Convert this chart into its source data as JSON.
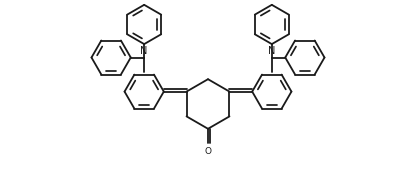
{
  "bg_color": "#ffffff",
  "line_color": "#1a1a1a",
  "line_width": 1.3,
  "fig_width": 4.16,
  "fig_height": 1.77,
  "dpi": 100,
  "xlim": [
    0,
    20
  ],
  "ylim": [
    0,
    8.5
  ]
}
